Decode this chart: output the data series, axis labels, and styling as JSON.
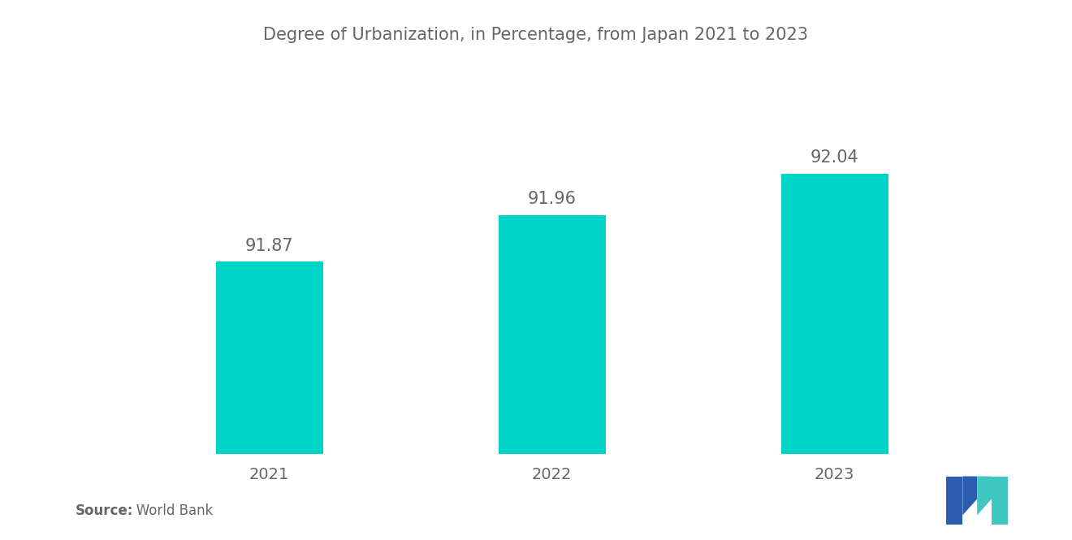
{
  "title": "Degree of Urbanization, in Percentage, from Japan 2021 to 2023",
  "categories": [
    "2021",
    "2022",
    "2023"
  ],
  "values": [
    91.87,
    91.96,
    92.04
  ],
  "bar_color": "#00D4C8",
  "background_color": "#ffffff",
  "value_color": "#666666",
  "title_color": "#666666",
  "xlabel_color": "#666666",
  "source_bold": "Source:",
  "source_normal": "   World Bank",
  "ylim_min": 91.5,
  "ylim_max": 92.25,
  "bar_width": 0.38,
  "value_fontsize": 15,
  "title_fontsize": 15,
  "xlabel_fontsize": 14,
  "source_fontsize": 12,
  "logo_blue": "#2B5CAD",
  "logo_teal": "#3EC8C0"
}
